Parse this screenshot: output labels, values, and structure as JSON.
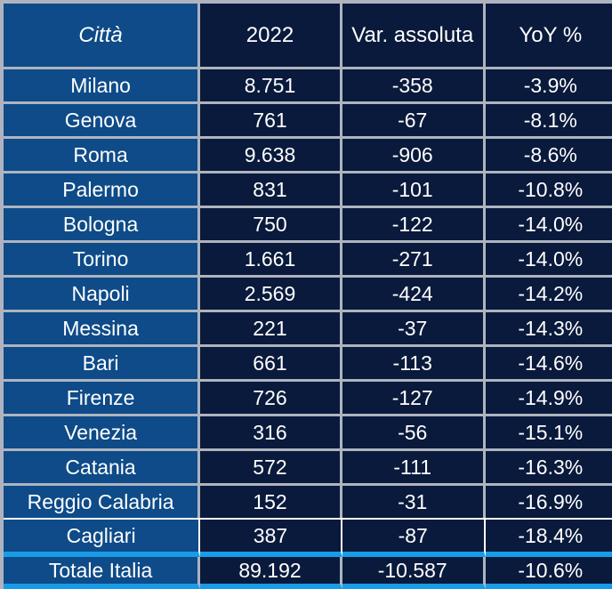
{
  "colors": {
    "accent_azure": "#189CE8",
    "city_column_blue": "#0E4B88",
    "value_cell_navy": "#0A1A3C",
    "border_gray": "#AEB4BF",
    "text_white": "#FFFFFF",
    "page_background": "#050E24"
  },
  "table": {
    "columns": [
      "Città",
      "2022",
      "Var. assoluta",
      "YoY %"
    ],
    "rows": [
      [
        "Milano",
        "8.751",
        "-358",
        "-3.9%"
      ],
      [
        "Genova",
        "761",
        "-67",
        "-8.1%"
      ],
      [
        "Roma",
        "9.638",
        "-906",
        "-8.6%"
      ],
      [
        "Palermo",
        "831",
        "-101",
        "-10.8%"
      ],
      [
        "Bologna",
        "750",
        "-122",
        "-14.0%"
      ],
      [
        "Torino",
        "1.661",
        "-271",
        "-14.0%"
      ],
      [
        "Napoli",
        "2.569",
        "-424",
        "-14.2%"
      ],
      [
        "Messina",
        "221",
        "-37",
        "-14.3%"
      ],
      [
        "Bari",
        "661",
        "-113",
        "-14.6%"
      ],
      [
        "Firenze",
        "726",
        "-127",
        "-14.9%"
      ],
      [
        "Venezia",
        "316",
        "-56",
        "-15.1%"
      ],
      [
        "Catania",
        "572",
        "-111",
        "-16.3%"
      ],
      [
        "Reggio Calabria",
        "152",
        "-31",
        "-16.9%"
      ],
      [
        "Cagliari",
        "387",
        "-87",
        "-18.4%"
      ]
    ],
    "total_row": [
      "Totale Italia",
      "89.192",
      "-10.587",
      "-10.6%"
    ]
  },
  "chart_data": {
    "type": "table",
    "title": "",
    "columns": [
      "Città",
      "2022",
      "Var. assoluta",
      "YoY %"
    ],
    "categories": [
      "Milano",
      "Genova",
      "Roma",
      "Palermo",
      "Bologna",
      "Torino",
      "Napoli",
      "Messina",
      "Bari",
      "Firenze",
      "Venezia",
      "Catania",
      "Reggio Calabria",
      "Cagliari",
      "Totale Italia"
    ],
    "series": [
      {
        "name": "2022",
        "values": [
          8751,
          761,
          9638,
          831,
          750,
          1661,
          2569,
          221,
          661,
          726,
          316,
          572,
          152,
          387,
          89192
        ]
      },
      {
        "name": "Var. assoluta",
        "values": [
          -358,
          -67,
          -906,
          -101,
          -122,
          -271,
          -424,
          -37,
          -113,
          -127,
          -56,
          -111,
          -31,
          -87,
          -10587
        ]
      },
      {
        "name": "YoY %",
        "values": [
          -3.9,
          -8.1,
          -8.6,
          -10.8,
          -14.0,
          -14.0,
          -14.2,
          -14.3,
          -14.6,
          -14.9,
          -15.1,
          -16.3,
          -16.9,
          -18.4,
          -10.6
        ]
      }
    ]
  }
}
